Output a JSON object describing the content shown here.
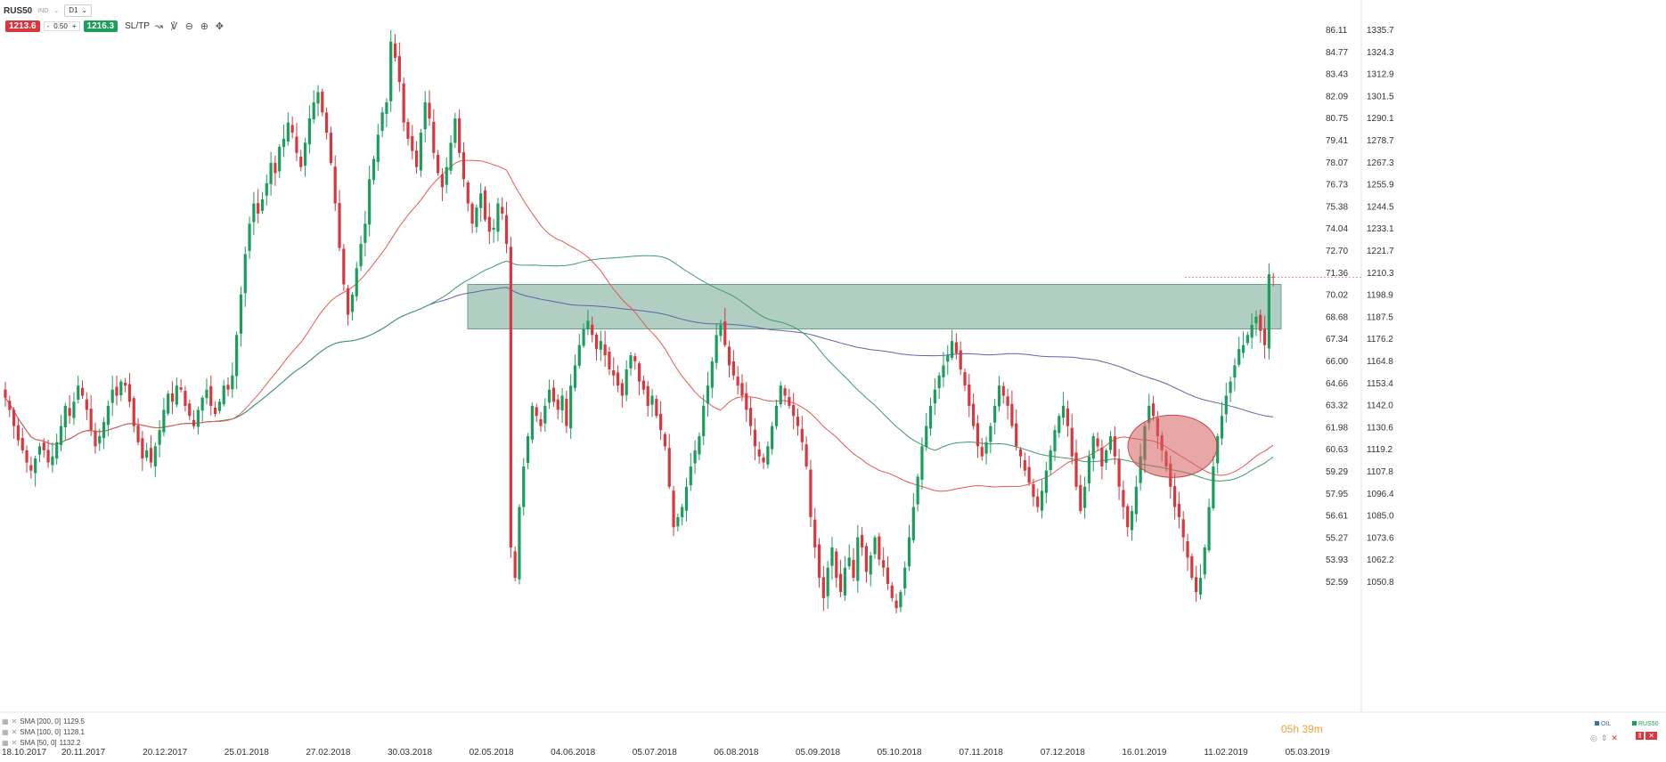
{
  "toolbar": {
    "symbol": "RUS50",
    "symbol_sub": "IND",
    "timeframe": "D1",
    "sell_price": "1213.6",
    "buy_price": "1216.3",
    "volume": "0.50",
    "minus": "-",
    "plus": "+",
    "sltp_label": "SL/TP"
  },
  "legend": [
    {
      "label": "SMA [200, 0]",
      "value": "1129.5"
    },
    {
      "label": "SMA [100, 0]",
      "value": "1128.1"
    },
    {
      "label": "SMA [50, 0]",
      "value": "1132.2"
    }
  ],
  "footer": {
    "timer": "05h 39m",
    "overlay_tag": "OIL",
    "main_tag": "RUS50"
  },
  "colors": {
    "up": "#1a9e5c",
    "down": "#d9363e",
    "sma50": "#e45a52",
    "sma100": "#3e9a6e",
    "sma200": "#6461a8",
    "zone": "#8fb9a6",
    "highlight": "#d45f5f"
  },
  "chart_data": {
    "type": "candlestick",
    "x_ticks": [
      "18.10.2017",
      "20.11.2017",
      "20.12.2017",
      "25.01.2018",
      "27.02.2018",
      "30.03.2018",
      "02.05.2018",
      "04.06.2018",
      "05.07.2018",
      "06.08.2018",
      "05.09.2018",
      "05.10.2018",
      "07.11.2018",
      "07.12.2018",
      "16.01.2019",
      "11.02.2019",
      "05.03.2019"
    ],
    "y_left_ticks": [
      "86.11",
      "84.77",
      "83.43",
      "82.09",
      "80.75",
      "79.41",
      "78.07",
      "76.73",
      "75.38",
      "74.04",
      "72.70",
      "71.36",
      "70.02",
      "68.68",
      "67.34",
      "66.00",
      "64.66",
      "63.32",
      "61.98",
      "60.63",
      "59.29",
      "57.95",
      "56.61",
      "55.27",
      "53.93",
      "52.59"
    ],
    "y_right_ticks": [
      "1335.7",
      "1324.3",
      "1312.9",
      "1301.5",
      "1290.1",
      "1278.7",
      "1267.3",
      "1255.9",
      "1244.5",
      "1233.1",
      "1221.7",
      "1210.3",
      "1198.9",
      "1187.5",
      "1176.2",
      "1164.8",
      "1153.4",
      "1142.0",
      "1130.6",
      "1119.2",
      "1107.8",
      "1096.4",
      "1085.0",
      "1073.6",
      "1062.2",
      "1050.8"
    ],
    "ylim": [
      1047.0,
      1340.0
    ],
    "grid": false,
    "last_price": 1213.6,
    "resistance_zone": [
      1188.0,
      1210.0
    ],
    "closes": [
      1154,
      1148,
      1140,
      1133,
      1128,
      1122,
      1118,
      1124,
      1130,
      1128,
      1122,
      1125,
      1132,
      1140,
      1150,
      1145,
      1152,
      1160,
      1155,
      1148,
      1138,
      1130,
      1135,
      1142,
      1150,
      1158,
      1155,
      1162,
      1160,
      1152,
      1140,
      1132,
      1124,
      1128,
      1122,
      1130,
      1138,
      1148,
      1156,
      1152,
      1160,
      1158,
      1150,
      1145,
      1140,
      1148,
      1154,
      1158,
      1150,
      1146,
      1152,
      1160,
      1158,
      1165,
      1185,
      1205,
      1225,
      1240,
      1250,
      1245,
      1252,
      1260,
      1270,
      1265,
      1278,
      1282,
      1290,
      1285,
      1275,
      1268,
      1280,
      1292,
      1300,
      1305,
      1295,
      1285,
      1270,
      1250,
      1228,
      1210,
      1195,
      1205,
      1218,
      1230,
      1240,
      1262,
      1272,
      1284,
      1295,
      1300,
      1330,
      1322,
      1310,
      1290,
      1282,
      1276,
      1268,
      1285,
      1300,
      1292,
      1275,
      1265,
      1258,
      1268,
      1280,
      1292,
      1275,
      1262,
      1250,
      1240,
      1248,
      1255,
      1242,
      1236,
      1238,
      1250,
      1245,
      1230,
      1080,
      1065,
      1100,
      1120,
      1135,
      1150,
      1145,
      1140,
      1150,
      1158,
      1152,
      1148,
      1155,
      1140,
      1160,
      1170,
      1180,
      1188,
      1192,
      1185,
      1178,
      1182,
      1175,
      1168,
      1165,
      1160,
      1155,
      1168,
      1175,
      1172,
      1162,
      1158,
      1150,
      1155,
      1145,
      1138,
      1130,
      1110,
      1090,
      1095,
      1100,
      1110,
      1120,
      1128,
      1135,
      1150,
      1160,
      1172,
      1185,
      1190,
      1180,
      1170,
      1165,
      1160,
      1155,
      1148,
      1140,
      1130,
      1125,
      1122,
      1130,
      1140,
      1150,
      1160,
      1155,
      1150,
      1145,
      1140,
      1132,
      1120,
      1095,
      1080,
      1065,
      1055,
      1070,
      1080,
      1065,
      1058,
      1070,
      1075,
      1065,
      1085,
      1080,
      1068,
      1076,
      1085,
      1074,
      1070,
      1062,
      1055,
      1050,
      1058,
      1070,
      1085,
      1100,
      1115,
      1130,
      1140,
      1150,
      1158,
      1165,
      1170,
      1175,
      1182,
      1176,
      1168,
      1160,
      1150,
      1140,
      1130,
      1125,
      1132,
      1140,
      1150,
      1160,
      1155,
      1150,
      1140,
      1130,
      1125,
      1118,
      1112,
      1105,
      1100,
      1108,
      1118,
      1128,
      1138,
      1145,
      1150,
      1140,
      1125,
      1110,
      1098,
      1110,
      1125,
      1135,
      1130,
      1120,
      1128,
      1135,
      1125,
      1110,
      1100,
      1090,
      1098,
      1110,
      1125,
      1140,
      1150,
      1145,
      1135,
      1128,
      1120,
      1110,
      1100,
      1095,
      1085,
      1075,
      1065,
      1058,
      1065,
      1080,
      1100,
      1120,
      1135,
      1145,
      1155,
      1162,
      1170,
      1178,
      1180,
      1185,
      1190,
      1194,
      1187,
      1180,
      1215,
      1213.6
    ]
  }
}
